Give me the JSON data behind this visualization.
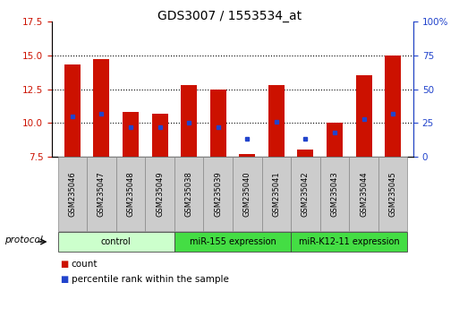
{
  "title": "GDS3007 / 1553534_at",
  "samples": [
    "GSM235046",
    "GSM235047",
    "GSM235048",
    "GSM235049",
    "GSM235038",
    "GSM235039",
    "GSM235040",
    "GSM235041",
    "GSM235042",
    "GSM235043",
    "GSM235044",
    "GSM235045"
  ],
  "bar_tops": [
    14.3,
    14.7,
    10.8,
    10.7,
    12.8,
    12.5,
    7.7,
    12.8,
    8.0,
    10.0,
    13.5,
    15.0
  ],
  "blue_y": [
    10.5,
    10.7,
    9.7,
    9.7,
    10.0,
    9.7,
    8.8,
    10.1,
    8.8,
    9.3,
    10.3,
    10.7
  ],
  "bar_bottom": 7.5,
  "ylim_left": [
    7.5,
    17.5
  ],
  "ylim_right": [
    0,
    100
  ],
  "yticks_left": [
    7.5,
    10.0,
    12.5,
    15.0,
    17.5
  ],
  "yticks_right": [
    0,
    25,
    50,
    75,
    100
  ],
  "ytick_labels_right": [
    "0",
    "25",
    "50",
    "75",
    "100%"
  ],
  "bar_color": "#cc1100",
  "blue_color": "#2244cc",
  "grid_color": "#000000",
  "title_fontsize": 10,
  "tick_fontsize": 7.5,
  "bar_width": 0.55,
  "xlim": [
    -0.7,
    11.7
  ],
  "groups_info": [
    {
      "label": "control",
      "x_start": -0.5,
      "x_end": 3.5,
      "color": "#ccffcc",
      "border": "#444444"
    },
    {
      "label": "miR-155 expression",
      "x_start": 3.5,
      "x_end": 7.5,
      "color": "#44dd44",
      "border": "#444444"
    },
    {
      "label": "miR-K12-11 expression",
      "x_start": 7.5,
      "x_end": 11.5,
      "color": "#44dd44",
      "border": "#444444"
    }
  ],
  "sample_box_color": "#cccccc",
  "sample_box_edge": "#888888",
  "bg_color": "#ffffff"
}
